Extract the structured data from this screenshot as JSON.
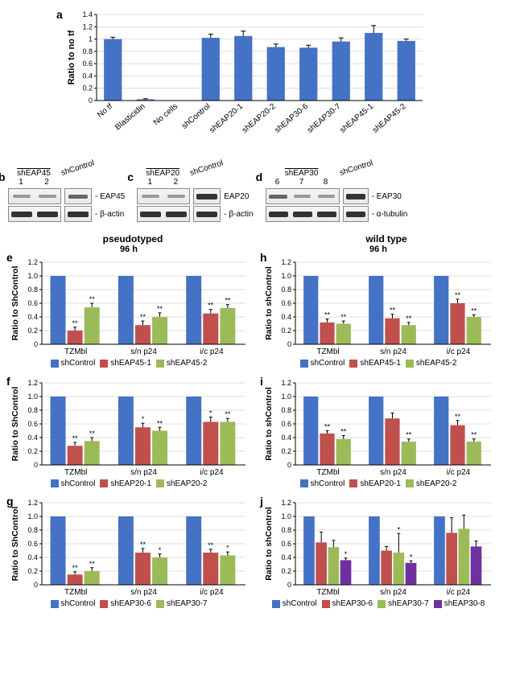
{
  "colors": {
    "blue": "#4472c4",
    "red": "#c0504d",
    "green": "#9bbb59",
    "purple": "#7030a0",
    "axis": "#000000",
    "grid": "#bfbfbf",
    "bg": "#ffffff"
  },
  "panel_a": {
    "label": "a",
    "type": "bar",
    "ylabel": "Ratio to no tf",
    "ylim": [
      0,
      1.4
    ],
    "ytick_step": 0.2,
    "categories": [
      "No tf",
      "Blasticidin",
      "No cells",
      "shControl",
      "shEAP20-1",
      "shEAP20-2",
      "shEAP30-6",
      "shEAP30-7",
      "shEAP45-1",
      "shEAP45-2"
    ],
    "values": [
      1.0,
      0.02,
      0.0,
      1.02,
      1.05,
      0.87,
      0.86,
      0.96,
      1.1,
      0.97
    ],
    "errors": [
      0.03,
      0.01,
      0,
      0.06,
      0.08,
      0.05,
      0.04,
      0.06,
      0.12,
      0.03
    ],
    "bar_color": "#4472c4",
    "bar_width": 0.55,
    "label_rotation": -45
  },
  "blots": {
    "b": {
      "label": "b",
      "header_left": "shEAP45",
      "lanes_left": [
        "1",
        "2"
      ],
      "header_right": "shControl",
      "rows": [
        {
          "name": "EAP45",
          "dash": "- ",
          "intensities": [
            "light",
            "light",
            "med"
          ]
        },
        {
          "name": "β-actin",
          "dash": "- ",
          "intensities": [
            "dark",
            "dark",
            "dark"
          ]
        }
      ]
    },
    "c": {
      "label": "c",
      "header_left": "shEAP20",
      "lanes_left": [
        "1",
        "2"
      ],
      "header_right": "shControl",
      "rows": [
        {
          "name": "EAP20",
          "dash": "",
          "intensities": [
            "light",
            "light",
            "dark"
          ]
        },
        {
          "name": "β-actin",
          "dash": "- ",
          "intensities": [
            "dark",
            "dark",
            "dark"
          ]
        }
      ]
    },
    "d": {
      "label": "d",
      "header_left": "shEAP30",
      "lanes_left": [
        "6",
        "7",
        "8"
      ],
      "header_right": "shControl",
      "rows": [
        {
          "name": "EAP30",
          "dash": "- ",
          "intensities": [
            "med",
            "light",
            "light",
            "dark"
          ]
        },
        {
          "name": "α-tubulin",
          "dash": "- ",
          "intensities": [
            "dark",
            "dark",
            "dark",
            "dark"
          ]
        }
      ]
    }
  },
  "header_pseudo": "pseudotyped",
  "header_wt": "wild type",
  "subheader_96h": "96 h",
  "panel_e": {
    "label": "e",
    "ylabel": "Ratio to ShControl",
    "ylim": [
      0,
      1.2
    ],
    "ytick_step": 0.2,
    "categories": [
      "TZMbl",
      "s/n p24",
      "i/c p24"
    ],
    "series": [
      {
        "name": "shControl",
        "color": "#4472c4",
        "values": [
          1.0,
          1.0,
          1.0
        ],
        "errors": [
          0,
          0,
          0
        ],
        "sig": [
          "",
          "",
          ""
        ]
      },
      {
        "name": "shEAP45-1",
        "color": "#c0504d",
        "values": [
          0.2,
          0.28,
          0.45
        ],
        "errors": [
          0.05,
          0.06,
          0.06
        ],
        "sig": [
          "**",
          "**",
          "**"
        ]
      },
      {
        "name": "shEAP45-2",
        "color": "#9bbb59",
        "values": [
          0.54,
          0.4,
          0.53
        ],
        "errors": [
          0.06,
          0.06,
          0.05
        ],
        "sig": [
          "**",
          "**",
          "**"
        ]
      }
    ]
  },
  "panel_f": {
    "label": "f",
    "ylabel": "Ratio to ShControl",
    "ylim": [
      0,
      1.2
    ],
    "ytick_step": 0.2,
    "categories": [
      "TZMbl",
      "s/n p24",
      "i/c p24"
    ],
    "series": [
      {
        "name": "shControl",
        "color": "#4472c4",
        "values": [
          1.0,
          1.0,
          1.0
        ],
        "errors": [
          0,
          0,
          0
        ],
        "sig": [
          "",
          "",
          ""
        ]
      },
      {
        "name": "shEAP20-1",
        "color": "#c0504d",
        "values": [
          0.28,
          0.55,
          0.63
        ],
        "errors": [
          0.05,
          0.06,
          0.07
        ],
        "sig": [
          "**",
          "*",
          "*"
        ]
      },
      {
        "name": "shEAP20-2",
        "color": "#9bbb59",
        "values": [
          0.35,
          0.5,
          0.63
        ],
        "errors": [
          0.05,
          0.05,
          0.05
        ],
        "sig": [
          "**",
          "**",
          "**"
        ]
      }
    ]
  },
  "panel_g": {
    "label": "g",
    "ylabel": "Ratio to ShControl",
    "ylim": [
      0,
      1.2
    ],
    "ytick_step": 0.2,
    "categories": [
      "TZMbl",
      "s/n p24",
      "i/c p24"
    ],
    "series": [
      {
        "name": "shControl",
        "color": "#4472c4",
        "values": [
          1.0,
          1.0,
          1.0
        ],
        "errors": [
          0,
          0,
          0
        ],
        "sig": [
          "",
          "",
          ""
        ]
      },
      {
        "name": "shEAP30-6",
        "color": "#c0504d",
        "values": [
          0.15,
          0.47,
          0.47
        ],
        "errors": [
          0.04,
          0.06,
          0.05
        ],
        "sig": [
          "**",
          "**",
          "**"
        ]
      },
      {
        "name": "shEAP30-7",
        "color": "#9bbb59",
        "values": [
          0.2,
          0.4,
          0.43
        ],
        "errors": [
          0.05,
          0.05,
          0.05
        ],
        "sig": [
          "**",
          "*",
          "*"
        ]
      }
    ]
  },
  "panel_h": {
    "label": "h",
    "ylabel": "Ratio to shControl",
    "ylim": [
      0,
      1.2
    ],
    "ytick_step": 0.2,
    "categories": [
      "TZMbl",
      "s/n p24",
      "i/c p24"
    ],
    "series": [
      {
        "name": "shControl",
        "color": "#4472c4",
        "values": [
          1.0,
          1.0,
          1.0
        ],
        "errors": [
          0,
          0,
          0
        ],
        "sig": [
          "",
          "",
          ""
        ]
      },
      {
        "name": "shEAP45-1",
        "color": "#c0504d",
        "values": [
          0.32,
          0.38,
          0.6
        ],
        "errors": [
          0.05,
          0.06,
          0.06
        ],
        "sig": [
          "**",
          "**",
          "**"
        ]
      },
      {
        "name": "shEAP45-2",
        "color": "#9bbb59",
        "values": [
          0.3,
          0.28,
          0.4
        ],
        "errors": [
          0.04,
          0.04,
          0.03
        ],
        "sig": [
          "**",
          "**",
          "**"
        ]
      }
    ]
  },
  "panel_i": {
    "label": "i",
    "ylabel": "Ratio to shControl",
    "ylim": [
      0,
      1.2
    ],
    "ytick_step": 0.2,
    "categories": [
      "TZMbl",
      "s/n p24",
      "i/c p24"
    ],
    "series": [
      {
        "name": "shControl",
        "color": "#4472c4",
        "values": [
          1.0,
          1.0,
          1.0
        ],
        "errors": [
          0,
          0,
          0
        ],
        "sig": [
          "",
          "",
          ""
        ]
      },
      {
        "name": "shEAP20-1",
        "color": "#c0504d",
        "values": [
          0.46,
          0.68,
          0.58
        ],
        "errors": [
          0.04,
          0.08,
          0.07
        ],
        "sig": [
          "**",
          "",
          "**"
        ]
      },
      {
        "name": "shEAP20-2",
        "color": "#9bbb59",
        "values": [
          0.38,
          0.34,
          0.34
        ],
        "errors": [
          0.05,
          0.04,
          0.04
        ],
        "sig": [
          "**",
          "**",
          "**"
        ]
      }
    ]
  },
  "panel_j": {
    "label": "j",
    "ylabel": "Ratio to shControl",
    "ylim": [
      0,
      1.2
    ],
    "ytick_step": 0.2,
    "categories": [
      "TZMbl",
      "s/n p24",
      "i/c p24"
    ],
    "series": [
      {
        "name": "shControl",
        "color": "#4472c4",
        "values": [
          1.0,
          1.0,
          1.0
        ],
        "errors": [
          0,
          0,
          0
        ],
        "sig": [
          "",
          "",
          ""
        ]
      },
      {
        "name": "shEAP30-6",
        "color": "#c0504d",
        "values": [
          0.62,
          0.5,
          0.76
        ],
        "errors": [
          0.15,
          0.06,
          0.22
        ],
        "sig": [
          "",
          "",
          ""
        ]
      },
      {
        "name": "shEAP30-7",
        "color": "#9bbb59",
        "values": [
          0.55,
          0.47,
          0.82
        ],
        "errors": [
          0.1,
          0.28,
          0.2
        ],
        "sig": [
          "",
          "*",
          ""
        ]
      },
      {
        "name": "shEAP30-8",
        "color": "#7030a0",
        "values": [
          0.36,
          0.32,
          0.56
        ],
        "errors": [
          0.03,
          0.03,
          0.08
        ],
        "sig": [
          "*",
          "*",
          ""
        ]
      }
    ]
  }
}
